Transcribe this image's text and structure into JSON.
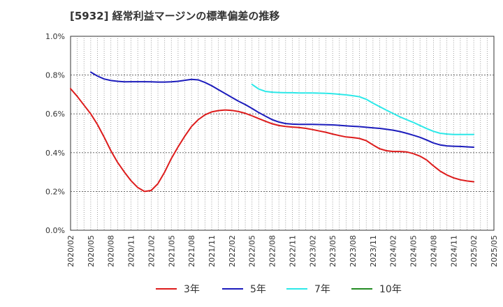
{
  "chart_data": {
    "type": "line",
    "title": "[5932]  経常利益マージンの標準偏差の推移",
    "xlabel": "",
    "ylabel": "",
    "ylim": [
      0,
      1.0
    ],
    "y_ticks": [
      "0.0%",
      "0.2%",
      "0.4%",
      "0.6%",
      "0.8%",
      "1.0%"
    ],
    "x_ticks": [
      "2020/02",
      "2020/05",
      "2020/08",
      "2020/11",
      "2021/02",
      "2021/05",
      "2021/08",
      "2021/11",
      "2022/02",
      "2022/05",
      "2022/08",
      "2022/11",
      "2023/02",
      "2023/05",
      "2023/08",
      "2023/11",
      "2024/02",
      "2024/05",
      "2024/08",
      "2024/11",
      "2025/02",
      "2025/05"
    ],
    "grid": true,
    "legend_position": "bottom",
    "series": [
      {
        "name": "3年",
        "color": "#dd1c1c",
        "x": [
          "2020/02",
          "2020/03",
          "2020/04",
          "2020/05",
          "2020/06",
          "2020/07",
          "2020/08",
          "2020/09",
          "2020/10",
          "2020/11",
          "2020/12",
          "2021/01",
          "2021/02",
          "2021/03",
          "2021/04",
          "2021/05",
          "2021/06",
          "2021/07",
          "2021/08",
          "2021/09",
          "2021/10",
          "2021/11",
          "2021/12",
          "2022/01",
          "2022/02",
          "2022/03",
          "2022/04",
          "2022/05",
          "2022/06",
          "2022/07",
          "2022/08",
          "2022/09",
          "2022/10",
          "2022/11",
          "2022/12",
          "2023/01",
          "2023/02",
          "2023/03",
          "2023/04",
          "2023/05",
          "2023/06",
          "2023/07",
          "2023/08",
          "2023/09",
          "2023/10",
          "2023/11",
          "2023/12",
          "2024/01",
          "2024/02",
          "2024/03",
          "2024/04",
          "2024/05",
          "2024/06",
          "2024/07",
          "2024/08",
          "2024/09",
          "2024/10",
          "2024/11",
          "2024/12",
          "2025/01",
          "2025/02"
        ],
        "values": [
          0.73,
          0.69,
          0.645,
          0.6,
          0.545,
          0.48,
          0.41,
          0.35,
          0.3,
          0.255,
          0.22,
          0.2,
          0.205,
          0.24,
          0.3,
          0.37,
          0.43,
          0.485,
          0.535,
          0.57,
          0.595,
          0.61,
          0.617,
          0.62,
          0.618,
          0.612,
          0.603,
          0.59,
          0.576,
          0.562,
          0.549,
          0.54,
          0.535,
          0.532,
          0.53,
          0.525,
          0.519,
          0.512,
          0.505,
          0.496,
          0.488,
          0.481,
          0.478,
          0.473,
          0.462,
          0.44,
          0.42,
          0.41,
          0.406,
          0.406,
          0.404,
          0.395,
          0.382,
          0.362,
          0.332,
          0.305,
          0.285,
          0.27,
          0.26,
          0.254,
          0.25
        ]
      },
      {
        "name": "5年",
        "color": "#1c1cbc",
        "x": [
          "2020/05",
          "2020/06",
          "2020/07",
          "2020/08",
          "2020/09",
          "2020/10",
          "2020/11",
          "2020/12",
          "2021/01",
          "2021/02",
          "2021/03",
          "2021/04",
          "2021/05",
          "2021/06",
          "2021/07",
          "2021/08",
          "2021/09",
          "2021/10",
          "2021/11",
          "2021/12",
          "2022/01",
          "2022/02",
          "2022/03",
          "2022/04",
          "2022/05",
          "2022/06",
          "2022/07",
          "2022/08",
          "2022/09",
          "2022/10",
          "2022/11",
          "2022/12",
          "2023/01",
          "2023/02",
          "2023/03",
          "2023/04",
          "2023/05",
          "2023/06",
          "2023/07",
          "2023/08",
          "2023/09",
          "2023/10",
          "2023/11",
          "2023/12",
          "2024/01",
          "2024/02",
          "2024/03",
          "2024/04",
          "2024/05",
          "2024/06",
          "2024/07",
          "2024/08",
          "2024/09",
          "2024/10",
          "2024/11",
          "2024/12",
          "2025/01",
          "2025/02"
        ],
        "values": [
          0.815,
          0.795,
          0.78,
          0.772,
          0.768,
          0.765,
          0.766,
          0.766,
          0.766,
          0.765,
          0.764,
          0.764,
          0.765,
          0.768,
          0.773,
          0.778,
          0.775,
          0.762,
          0.745,
          0.725,
          0.705,
          0.685,
          0.665,
          0.648,
          0.628,
          0.607,
          0.588,
          0.57,
          0.558,
          0.55,
          0.547,
          0.546,
          0.546,
          0.546,
          0.545,
          0.544,
          0.543,
          0.541,
          0.538,
          0.536,
          0.534,
          0.531,
          0.528,
          0.525,
          0.521,
          0.516,
          0.509,
          0.5,
          0.49,
          0.479,
          0.465,
          0.45,
          0.44,
          0.435,
          0.433,
          0.432,
          0.43,
          0.428
        ]
      },
      {
        "name": "7年",
        "color": "#2ce8e8",
        "x": [
          "2022/05",
          "2022/06",
          "2022/07",
          "2022/08",
          "2022/09",
          "2022/10",
          "2022/11",
          "2022/12",
          "2023/01",
          "2023/02",
          "2023/03",
          "2023/04",
          "2023/05",
          "2023/06",
          "2023/07",
          "2023/08",
          "2023/09",
          "2023/10",
          "2023/11",
          "2023/12",
          "2024/01",
          "2024/02",
          "2024/03",
          "2024/04",
          "2024/05",
          "2024/06",
          "2024/07",
          "2024/08",
          "2024/09",
          "2024/10",
          "2024/11",
          "2024/12",
          "2025/01",
          "2025/02"
        ],
        "values": [
          0.752,
          0.728,
          0.716,
          0.712,
          0.71,
          0.709,
          0.709,
          0.708,
          0.708,
          0.708,
          0.707,
          0.706,
          0.704,
          0.701,
          0.698,
          0.694,
          0.688,
          0.675,
          0.655,
          0.637,
          0.619,
          0.602,
          0.585,
          0.57,
          0.556,
          0.54,
          0.524,
          0.51,
          0.5,
          0.496,
          0.494,
          0.494,
          0.494,
          0.494
        ]
      },
      {
        "name": "10年",
        "color": "#228b22",
        "x": [],
        "values": []
      }
    ]
  }
}
